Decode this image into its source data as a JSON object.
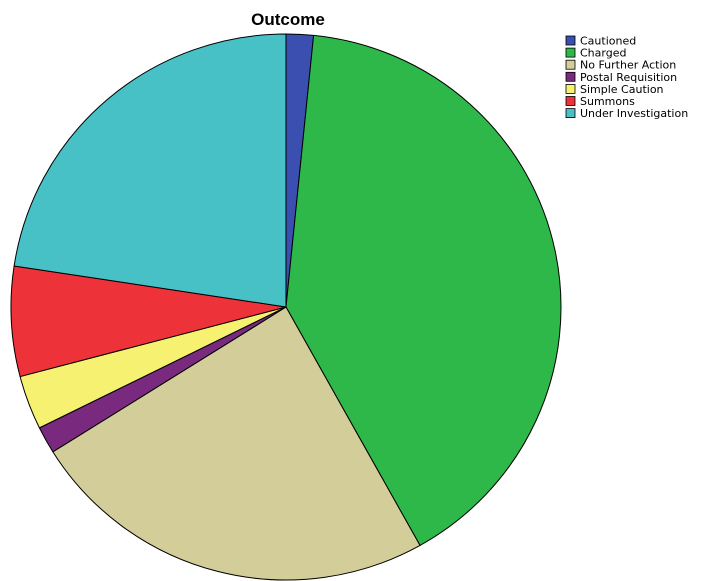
{
  "chart_data": {
    "type": "pie",
    "title": "Outcome",
    "legend_position": "top-right",
    "start_angle_deg": 0,
    "direction": "clockwise",
    "slices": [
      {
        "label": "Cautioned",
        "value": 1.6,
        "color": "#3a4fb0"
      },
      {
        "label": "Charged",
        "value": 40.3,
        "color": "#2fb84a"
      },
      {
        "label": "No Further Action",
        "value": 24.2,
        "color": "#d3cd9a"
      },
      {
        "label": "Postal Requisition",
        "value": 1.6,
        "color": "#7a2a7e"
      },
      {
        "label": "Simple Caution",
        "value": 3.2,
        "color": "#f7f171"
      },
      {
        "label": "Summons",
        "value": 6.5,
        "color": "#ee3239"
      },
      {
        "label": "Under Investigation",
        "value": 22.6,
        "color": "#47c1c6"
      }
    ]
  }
}
